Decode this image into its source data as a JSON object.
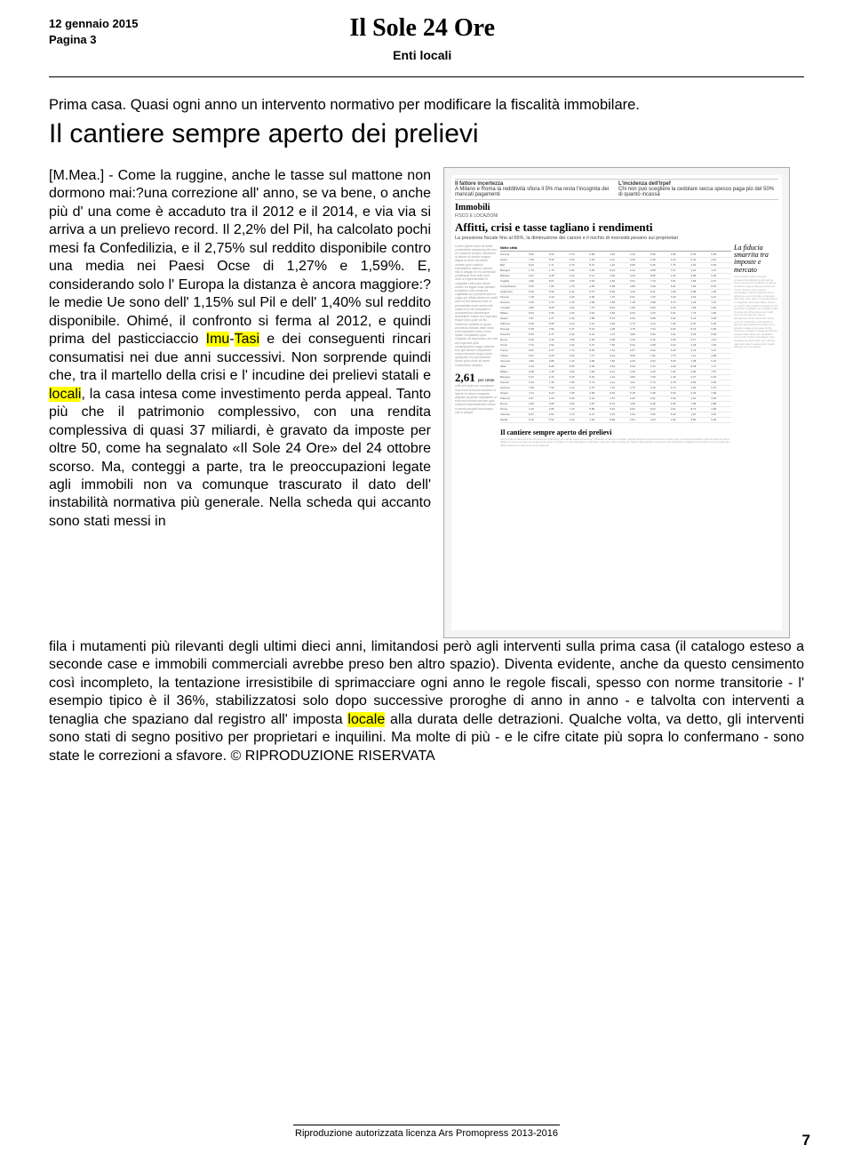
{
  "header": {
    "date": "12 gennaio 2015",
    "page": "Pagina 3",
    "masthead": "Il Sole 24 Ore",
    "section": "Enti locali"
  },
  "article": {
    "kicker": "Prima casa. Quasi ogni anno un intervento normativo per modificare la fiscalità immobilare.",
    "headline": "Il cantiere sempre aperto dei prelievi",
    "body_lead": "[M.Mea.] - Come la ruggine, anche le tasse sul mattone non dormono mai:?una correzione all' anno, se va bene, o anche più d' una come è accaduto tra il 2012 e il 2014, e via via si arriva a un prelievo record. Il 2,2% del Pil, ha calcolato pochi mesi fa Confedilizia, e il 2,75% sul reddito disponibile contro una media nei Paesi Ocse di 1,27% e 1,59%. E, considerando solo l' Europa la distanza è ancora maggiore:?le medie Ue sono dell' 1,15% sul Pil e dell' 1,40% sul reddito disponibile. Ohimé, il confronto si ferma al 2012, e quindi prima del pasticciaccio ",
    "hl1": "Imu",
    "body_mid1": "-",
    "hl2": "Tasi",
    "body_mid2": " e dei conseguenti rincari consumatisi nei due anni successivi. Non sorprende quindi che, tra il martello della crisi e l' incudine dei prelievi statali e ",
    "hl3": "locali",
    "body_mid3": ", la casa intesa come investimento perda appeal. Tanto più che il patrimonio complessivo, con una rendita complessiva di quasi 37 miliardi, è gravato da imposte per oltre 50, come ha segnalato «Il Sole 24 Ore» del 24 ottobre scorso. Ma, conteggi a parte, tra le preoccupazioni legate agli immobili non va comunque trascurato il dato dell' instabilità normativa più generale. Nella scheda qui accanto sono stati messi in",
    "body_continue1": "fila i mutamenti più rilevanti degli ultimi dieci anni, limitandosi però agli interventi sulla prima casa (il catalogo esteso a seconde case e immobili commerciali avrebbe preso ben altro spazio). Diventa evidente, anche da questo censimento così incompleto, la tentazione irresistibile di sprimacciare ogni anno le regole fiscali, spesso con norme transitorie - l' esempio tipico è il 36%, stabilizzatosi solo dopo successive proroghe di anno in anno - e talvolta con interventi a tenaglia che spaziano dal registro all' imposta ",
    "hl4": "locale",
    "body_continue2": " alla durata delle detrazioni. Qualche volta, va detto, gli interventi sono stati di segno positivo per proprietari e inquilini. Ma molte di più - e le cifre citate più sopra lo confermano - sono state le correzioni a sfavore. © RIPRODUZIONE RISERVATA"
  },
  "clipping": {
    "section_label": "Immobili",
    "section_sub": "FISCO E LOCAZIONI",
    "top_bar_left": "Il fattore incertezza",
    "top_bar_mid": "A Milano e Roma la redditività sfiora il 5% ma resta l'incognita dei mancati pagamenti",
    "top_bar_right_title": "L'incidenza dell'Irpef",
    "top_bar_right": "Chi non può scegliere la cedolare secca spesso paga più del 50% di quanto incassa",
    "headline": "Affitti, crisi e tasse tagliano i rendimenti",
    "deck": "La pressione fiscale fino al 65%, la diminuzione dei canoni e il rischio di morosità pesano sui proprietari",
    "callout": "2,61",
    "callout_label": "per cento",
    "table_header": "Nelle città",
    "sidebar_head": "La fiducia smarrita tra imposte e mercato",
    "sub_headline": "Il cantiere sempre aperto dei prelievi"
  },
  "footer": {
    "license": "Riproduzione autorizzata licenza Ars Promopress 2013-2016",
    "page_num": "7"
  },
  "mock_rows": [
    "Ancona",
    "Aosta",
    "Bari",
    "Bologna",
    "Bolzano",
    "Cagliari",
    "Campobasso",
    "Catanzaro",
    "Firenze",
    "Genova",
    "L'Aquila",
    "Milano",
    "Napoli",
    "Palermo",
    "Perugia",
    "Potenza",
    "Roma",
    "Torino",
    "Trento",
    "Trieste",
    "Venezia",
    "Italia",
    "Milano",
    "Bologna",
    "Firenze",
    "Genova",
    "Napoli",
    "Palermo",
    "Roma",
    "Torino",
    "Venezia",
    "Media"
  ],
  "mock_cols": [
    "",
    "Cedolare",
    "Imu",
    "Tasi",
    "Prelievo",
    "netto",
    "lordo"
  ]
}
